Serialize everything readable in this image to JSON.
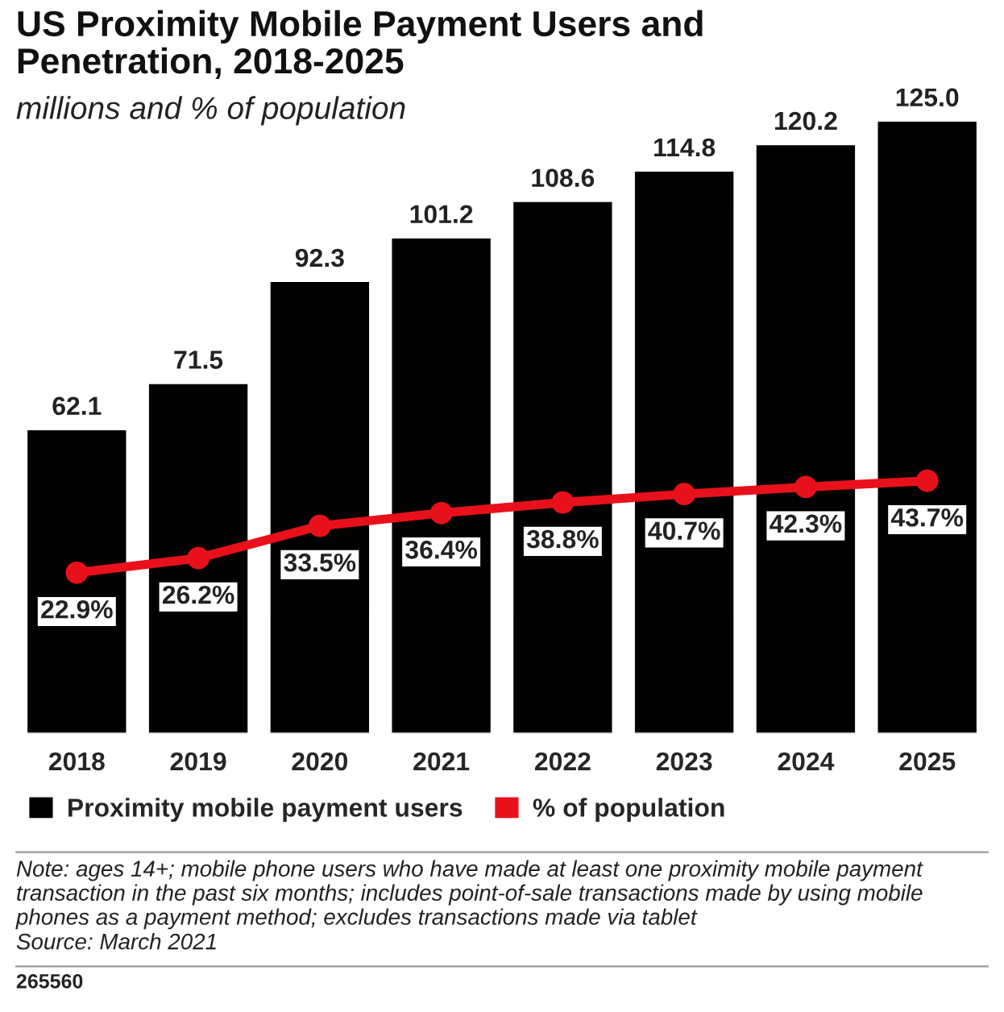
{
  "chart_data": {
    "type": "bar",
    "title": "US Proximity Mobile Payment Users and\nPenetration, 2018-2025",
    "subtitle": "millions and % of population",
    "categories": [
      "2018",
      "2019",
      "2020",
      "2021",
      "2022",
      "2023",
      "2024",
      "2025"
    ],
    "series": [
      {
        "name": "Proximity mobile payment users",
        "color": "#000000",
        "values": [
          62.1,
          71.5,
          92.3,
          101.2,
          108.6,
          114.8,
          120.2,
          125.0
        ],
        "value_labels": [
          "62.1",
          "71.5",
          "92.3",
          "101.2",
          "108.6",
          "114.8",
          "120.2",
          "125.0"
        ]
      },
      {
        "name": "% of population",
        "type": "line",
        "axis": "y2",
        "color": "#e8111b",
        "marker": "circle",
        "values": [
          22.9,
          26.2,
          33.5,
          36.4,
          38.8,
          40.7,
          42.3,
          43.7
        ],
        "value_labels": [
          "22.9%",
          "26.2%",
          "33.5%",
          "36.4%",
          "38.8%",
          "40.7%",
          "42.3%",
          "43.7%"
        ]
      }
    ],
    "tick_labels": "x",
    "legend": "bottom left",
    "grid": false,
    "annotations": [
      "Note: ages 14+; mobile phone users who have made at least one proximity mobile payment\ntransaction in the past six months; includes point-of-sale transactions made by using mobile\nphones as a payment method; excludes transactions made via tablet",
      "Source: March 2021",
      "265560"
    ]
  }
}
